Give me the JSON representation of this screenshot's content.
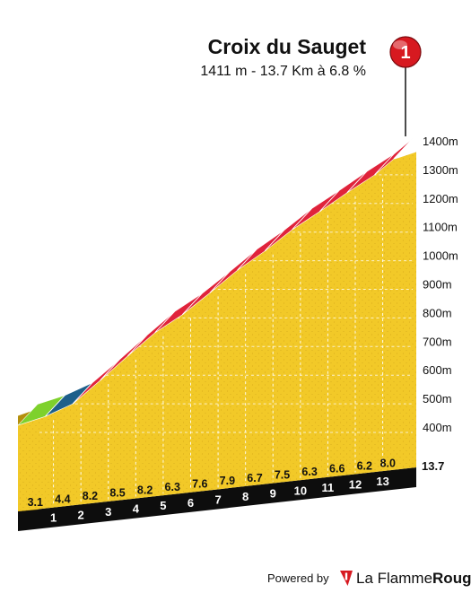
{
  "header": {
    "title": "Croix du Sauget",
    "subtitle": "1411 m - 13.7 Km à 6.8 %"
  },
  "marker": {
    "number": "1",
    "color": "#d71920"
  },
  "footer": {
    "powered_by": "Powered by",
    "brand_prefix": "La Flamme",
    "brand_suffix": "Rouge",
    "brand_color": "#d71920"
  },
  "colors": {
    "profile_fill": "#f2c928",
    "profile_side": "#b48f0c",
    "band_green": "#7ed12c",
    "band_blue": "#1d5f8a",
    "band_red": "#e0233b",
    "base_black": "#0d0d0d"
  },
  "chart_data": {
    "type": "area",
    "title": "Croix du Sauget",
    "subtitle": "1411 m - 13.7 Km à 6.8 %",
    "xlabel": "",
    "ylabel": "",
    "ylim": [
      270,
      1411
    ],
    "y_ticks": [
      400,
      500,
      600,
      700,
      800,
      900,
      1000,
      1100,
      1200,
      1300,
      1400
    ],
    "y_tick_labels": [
      "400m",
      "500m",
      "600m",
      "700m",
      "800m",
      "900m",
      "1000m",
      "1100m",
      "1200m",
      "1300m",
      "1400m"
    ],
    "km_labels": [
      "1",
      "2",
      "3",
      "4",
      "5",
      "6",
      "7",
      "8",
      "9",
      "10",
      "11",
      "12",
      "13"
    ],
    "total_km_label": "13.7",
    "km_boundaries": [
      0,
      1,
      2,
      3,
      4,
      5,
      6,
      7,
      8,
      9,
      10,
      11,
      12,
      13,
      13.7
    ],
    "gradients": [
      3.1,
      4.4,
      8.2,
      8.5,
      8.2,
      6.3,
      7.6,
      7.9,
      6.7,
      7.5,
      6.3,
      6.6,
      6.2,
      8.0
    ],
    "gradient_labels": [
      "3.1",
      "4.4",
      "8.2",
      "8.5",
      "8.2",
      "6.3",
      "7.6",
      "7.9",
      "6.7",
      "7.5",
      "6.3",
      "6.6",
      "6.2",
      "8.0"
    ],
    "elevations": [
      480,
      511,
      555,
      637,
      722,
      804,
      867,
      943,
      1022,
      1089,
      1164,
      1227,
      1293,
      1355,
      1411
    ],
    "grid": true,
    "legend": "none"
  }
}
